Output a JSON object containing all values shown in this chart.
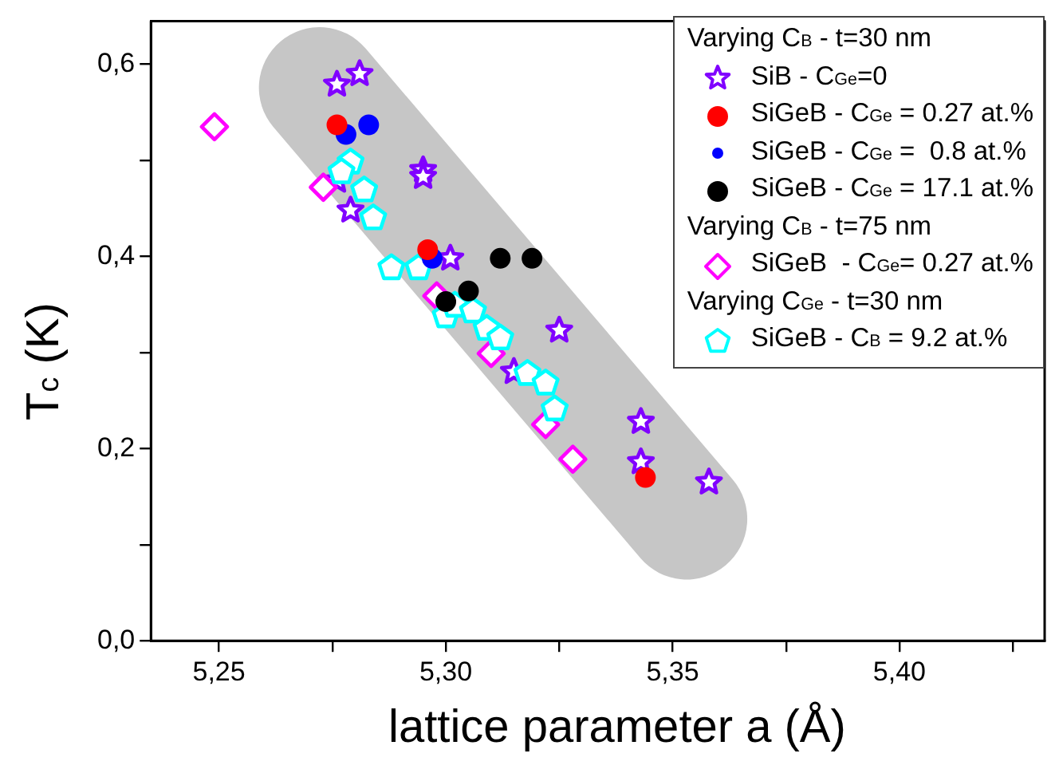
{
  "chart_data": {
    "type": "scatter",
    "xlabel": "lattice parameter a (Å)",
    "ylabel": "T$_{c}$ (K)",
    "xlim": [
      5.235,
      5.432
    ],
    "xticks": [
      {
        "value": 5.25,
        "label": "5,25"
      },
      {
        "value": 5.275,
        "label": null
      },
      {
        "value": 5.3,
        "label": "5,30"
      },
      {
        "value": 5.325,
        "label": null
      },
      {
        "value": 5.35,
        "label": "5,35"
      },
      {
        "value": 5.375,
        "label": null
      },
      {
        "value": 5.4,
        "label": "5,40"
      },
      {
        "value": 5.425,
        "label": null
      }
    ],
    "ylim": [
      0,
      0.645
    ],
    "yticks": [
      {
        "value": 0,
        "label": "0,0"
      },
      {
        "value": 0.1,
        "label": null
      },
      {
        "value": 0.2,
        "label": "0,2"
      },
      {
        "value": 0.3,
        "label": null
      },
      {
        "value": 0.4,
        "label": "0,4"
      },
      {
        "value": 0.5,
        "label": null
      },
      {
        "value": 0.6,
        "label": "0,6"
      }
    ],
    "grid": false,
    "legend": "top right",
    "annotations": [
      "Varying C$_{B}$ - t=30 nm",
      "Varying C$_{B}$ - t=75 nm",
      "Varying C$_{Ge}$ - t=30 nm"
    ],
    "series": [
      {
        "name": "SiB - C$_{Ge}$=0",
        "color": "#8000ff",
        "marker": "star",
        "x": [
          5.276,
          5.281,
          5.295,
          5.295,
          5.276,
          5.279,
          5.301,
          5.325,
          5.315,
          5.343,
          5.343,
          5.358
        ],
        "values": [
          0.579,
          0.59,
          0.49,
          0.483,
          0.479,
          0.448,
          0.398,
          0.323,
          0.28,
          0.228,
          0.186,
          0.165
        ]
      },
      {
        "name": "SiGeB - C$_{Ge}$ = 0.27 at.%",
        "color": "#ff0000",
        "marker": "circle",
        "x": [
          5.276,
          5.296,
          5.344
        ],
        "values": [
          0.537,
          0.407,
          0.17
        ]
      },
      {
        "name": "SiGeB - C$_{Ge}$ =  0.8 at.%",
        "color": "#0000ff",
        "marker": "circle",
        "x": [
          5.278,
          5.283,
          5.297
        ],
        "values": [
          0.527,
          0.537,
          0.398
        ]
      },
      {
        "name": "SiGeB - C$_{Ge}$ = 17.1 at.%",
        "color": "#000000",
        "marker": "circle",
        "x": [
          5.312,
          5.319,
          5.305,
          5.3
        ],
        "values": [
          0.398,
          0.398,
          0.364,
          0.353
        ]
      },
      {
        "name": "SiGeB  - C$_{Ge}$= 0.27 at.%",
        "color": "#ff00ff",
        "marker": "diamond",
        "x": [
          5.249,
          5.273,
          5.298,
          5.31,
          5.322,
          5.328
        ],
        "values": [
          0.535,
          0.472,
          0.359,
          0.299,
          0.225,
          0.189
        ]
      },
      {
        "name": "SiGeB - C$_{B}$ = 9.2 at.%",
        "color": "#00ffff",
        "x": [
          5.279,
          5.277,
          5.282,
          5.284,
          5.288,
          5.294,
          5.3,
          5.302,
          5.306,
          5.309,
          5.312,
          5.318,
          5.322,
          5.324
        ],
        "values": [
          0.498,
          0.488,
          0.469,
          0.44,
          0.388,
          0.388,
          0.338,
          0.349,
          0.343,
          0.325,
          0.315,
          0.278,
          0.268,
          0.241
        ]
      }
    ]
  }
}
